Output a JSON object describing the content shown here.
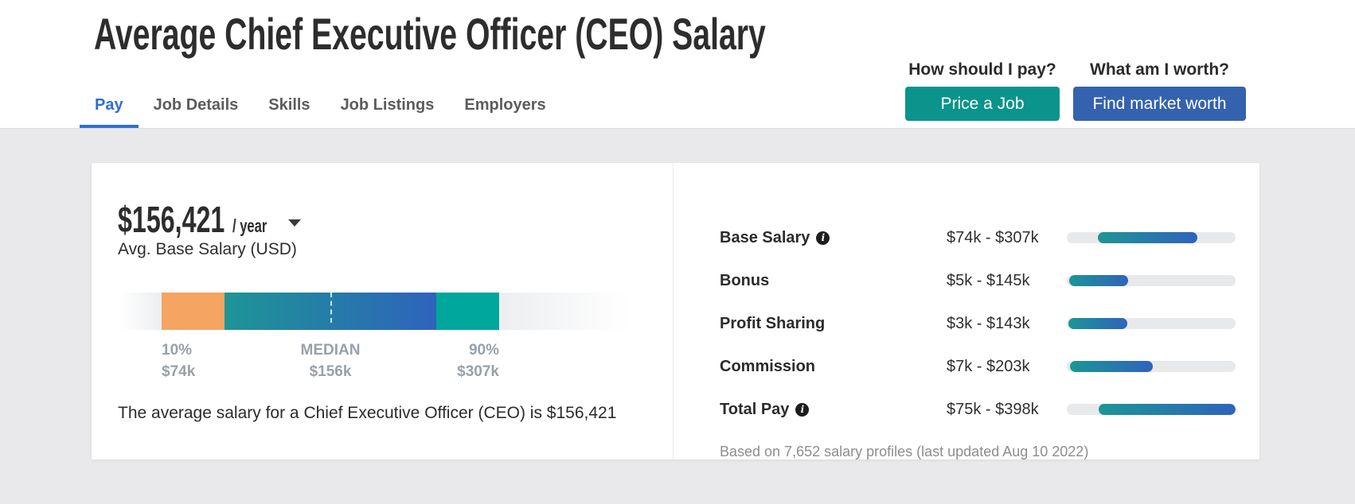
{
  "header": {
    "title": "Average Chief Executive Officer (CEO) Salary",
    "tabs": [
      {
        "label": "Pay",
        "active": true
      },
      {
        "label": "Job Details",
        "active": false
      },
      {
        "label": "Skills",
        "active": false
      },
      {
        "label": "Job Listings",
        "active": false
      },
      {
        "label": "Employers",
        "active": false
      }
    ],
    "cta": {
      "pay_question": "How should I pay?",
      "price_job_label": "Price a Job",
      "worth_question": "What am I worth?",
      "find_worth_label": "Find market worth"
    }
  },
  "salary_card": {
    "amount": "$156,421",
    "period": "/ year",
    "subtitle": "Avg. Base Salary (USD)",
    "summary": "The average salary for a Chief Executive Officer (CEO) is $156,421",
    "footnote": "Based on 7,652 salary profiles (last updated Aug 10 2022)"
  },
  "colors": {
    "tab_active_blue": "#2e6fd0",
    "teal_button": "#0a948b",
    "blue_button": "#3562ae",
    "orange_segment": "#f5a462",
    "gradient_teal": "#1d9596",
    "gradient_blue": "#2e63bc",
    "solid_teal": "#00a79c"
  },
  "chart_data": [
    {
      "type": "bar",
      "name": "base-salary-distribution",
      "title": "Avg. Base Salary (USD)",
      "percentiles": {
        "p10": 74000,
        "median": 156421,
        "p90": 307000
      },
      "ticks": {
        "p10_pct": "10%",
        "p10_val": "$74k",
        "median_label": "MEDIAN",
        "median_val": "$156k",
        "p90_pct": "90%",
        "p90_val": "$307k"
      },
      "median_marker_pct": 41.6,
      "segments": [
        {
          "name": "p10-p25",
          "start_pct": 8.6,
          "end_pct": 20.9,
          "color": "#f5a462"
        },
        {
          "name": "p25-p75",
          "start_pct": 20.9,
          "end_pct": 62.3,
          "color_start": "#1d9596",
          "color_end": "#2e63bc"
        },
        {
          "name": "p75-p90",
          "start_pct": 62.3,
          "end_pct": 74.6,
          "color": "#00a79c"
        }
      ]
    },
    {
      "type": "bar",
      "name": "pay-components-ranges",
      "orientation": "horizontal-range",
      "scale_max_k": 398,
      "fill_gradient": [
        "#1d9596",
        "#2e63bc"
      ],
      "rows": [
        {
          "label": "Base Salary",
          "info": true,
          "range_text": "$74k - $307k",
          "min_k": 74,
          "max_k": 307
        },
        {
          "label": "Bonus",
          "info": false,
          "range_text": "$5k - $145k",
          "min_k": 5,
          "max_k": 145
        },
        {
          "label": "Profit Sharing",
          "info": false,
          "range_text": "$3k - $143k",
          "min_k": 3,
          "max_k": 143
        },
        {
          "label": "Commission",
          "info": false,
          "range_text": "$7k - $203k",
          "min_k": 7,
          "max_k": 203
        },
        {
          "label": "Total Pay",
          "info": true,
          "range_text": "$75k - $398k",
          "min_k": 75,
          "max_k": 398
        }
      ]
    }
  ]
}
